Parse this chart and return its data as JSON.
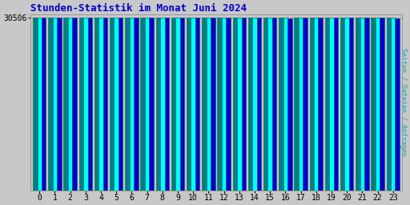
{
  "title": "Stunden-Statistik im Monat Juni 2024",
  "title_color": "#0000cc",
  "title_fontsize": 9,
  "ylabel_right": "Seiten / Dateien / Anfragen",
  "ylabel_right_color": "#00aaaa",
  "categories": [
    0,
    1,
    2,
    3,
    4,
    5,
    6,
    7,
    8,
    9,
    10,
    11,
    12,
    13,
    14,
    15,
    16,
    17,
    18,
    19,
    20,
    21,
    22,
    23
  ],
  "ytick_label": "30506",
  "background_color": "#c8c8c8",
  "plot_bg_color": "#c8c8c8",
  "bar_cyan_color": "#00ffff",
  "bar_teal_color": "#008080",
  "bar_blue_color": "#0000cc",
  "bar_edge_color": "#006060",
  "values_cyan": [
    30480,
    30490,
    30490,
    30480,
    30475,
    30506,
    30480,
    30490,
    30475,
    30465,
    30490,
    30480,
    30490,
    30475,
    30475,
    30465,
    30440,
    30480,
    30480,
    30465,
    30475,
    30490,
    30475,
    30460
  ],
  "values_teal": [
    30460,
    30470,
    30470,
    30460,
    30455,
    30490,
    30460,
    30470,
    30455,
    30445,
    30470,
    30460,
    30470,
    30455,
    30455,
    30445,
    30420,
    30460,
    30460,
    30445,
    30455,
    30470,
    30455,
    30440
  ],
  "values_blue": [
    30430,
    30440,
    30440,
    30430,
    30425,
    30460,
    30430,
    30440,
    30425,
    30415,
    30440,
    30430,
    30440,
    30425,
    30425,
    30415,
    30390,
    30430,
    30430,
    30415,
    30425,
    30440,
    30425,
    30410
  ],
  "ylim_min": 0,
  "ylim_max": 31000,
  "ytick_val": 30506,
  "font_family": "monospace"
}
